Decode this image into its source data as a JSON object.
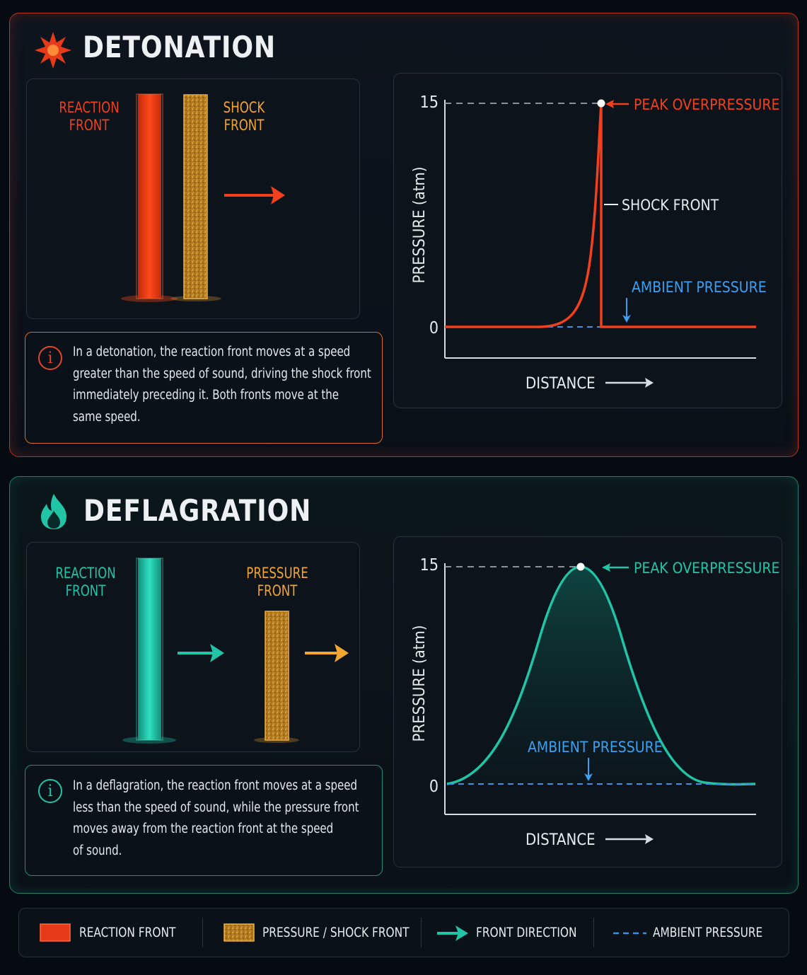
{
  "detonation": {
    "title": "DETONATION",
    "icon": "explosion-icon",
    "reaction_label_1": "REACTION",
    "reaction_label_2": "FRONT",
    "shock_label_1": "SHOCK",
    "shock_label_2": "FRONT",
    "info_text_lines": [
      "In a detonation, the reaction front moves at a speed",
      "greater than the speed of sound, driving the shock front",
      "immediately preceding it. Both fronts move at the",
      "same speed."
    ],
    "chart": {
      "y_axis_label": "PRESSURE (atm)",
      "x_axis_label": "DISTANCE",
      "y_tick_top": "15",
      "y_tick_bottom": "0",
      "peak_label": "PEAK OVERPRESSURE",
      "shock_front_label": "SHOCK FRONT",
      "ambient_label": "AMBIENT PRESSURE"
    }
  },
  "deflagration": {
    "title": "DEFLAGRATION",
    "icon": "flame-icon",
    "reaction_label_1": "REACTION",
    "reaction_label_2": "FRONT",
    "pressure_label_1": "PRESSURE",
    "pressure_label_2": "FRONT",
    "info_text_lines": [
      "In a deflagration, the reaction front moves at a speed",
      "less than the speed of sound, while the pressure front",
      "moves away from the reaction front at the speed",
      "of sound."
    ],
    "chart": {
      "y_axis_label": "PRESSURE (atm)",
      "x_axis_label": "DISTANCE",
      "y_tick_top": "15",
      "y_tick_bottom": "0",
      "peak_label": "PEAK OVERPRESSURE",
      "ambient_label": "AMBIENT PRESSURE"
    }
  },
  "legend": {
    "reaction_front": "REACTION FRONT",
    "pressure_shock_front": "PRESSURE / SHOCK FRONT",
    "front_direction": "FRONT DIRECTION",
    "ambient_pressure": "AMBIENT PRESSURE"
  },
  "colors": {
    "detonation_accent": "#f0401e",
    "deflagration_accent": "#22c4a6",
    "pressure_front": "#e0a030",
    "ambient_line": "#3d8fe0"
  }
}
